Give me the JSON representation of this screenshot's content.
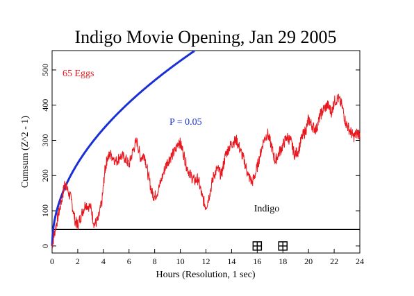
{
  "chart_data": {
    "type": "line",
    "title": "Indigo Movie Opening, Jan 29 2005",
    "xlabel": "Hours (Resolution, 1 sec)",
    "ylabel": "Cumsum (Z^2 - 1)",
    "xlim": [
      0,
      24
    ],
    "ylim": [
      -20,
      555
    ],
    "x_ticks": [
      0,
      2,
      4,
      6,
      8,
      10,
      12,
      14,
      16,
      18,
      20,
      22,
      24
    ],
    "y_ticks": [
      0,
      100,
      200,
      300,
      400,
      500
    ],
    "grid": false,
    "series": [
      {
        "name": "65 Eggs",
        "color": "#e8161d",
        "x": [
          0,
          0.2,
          0.5,
          0.8,
          1.0,
          1.2,
          1.5,
          1.8,
          2.0,
          2.3,
          2.6,
          3.0,
          3.3,
          3.6,
          3.9,
          4.1,
          4.3,
          4.6,
          5.0,
          5.3,
          5.7,
          6.0,
          6.3,
          6.6,
          6.9,
          7.2,
          7.5,
          7.8,
          8.0,
          8.3,
          8.7,
          9.0,
          9.3,
          9.6,
          9.9,
          10.2,
          10.5,
          10.8,
          11.1,
          11.4,
          11.7,
          12.0,
          12.3,
          12.6,
          12.9,
          13.2,
          13.5,
          13.8,
          14.1,
          14.4,
          14.7,
          15.0,
          15.3,
          15.6,
          15.9,
          16.2,
          16.5,
          16.8,
          17.1,
          17.4,
          17.7,
          18.0,
          18.3,
          18.6,
          18.9,
          19.2,
          19.5,
          19.8,
          20.0,
          20.3,
          20.6,
          20.9,
          21.2,
          21.5,
          21.8,
          22.0,
          22.3,
          22.6,
          22.9,
          23.2,
          23.5,
          23.8,
          24.0
        ],
        "y": [
          0,
          40,
          90,
          140,
          180,
          160,
          130,
          70,
          60,
          90,
          120,
          110,
          60,
          75,
          130,
          210,
          250,
          260,
          240,
          255,
          250,
          230,
          270,
          300,
          250,
          260,
          200,
          150,
          140,
          160,
          210,
          240,
          255,
          270,
          300,
          270,
          225,
          200,
          185,
          190,
          140,
          110,
          150,
          200,
          220,
          200,
          255,
          280,
          295,
          300,
          270,
          240,
          200,
          180,
          210,
          255,
          300,
          320,
          285,
          240,
          265,
          285,
          310,
          300,
          260,
          270,
          310,
          330,
          360,
          340,
          330,
          370,
          390,
          400,
          380,
          410,
          420,
          400,
          350,
          330,
          310,
          320,
          320
        ]
      },
      {
        "name": "P = 0.05",
        "color": "#1a2fd6",
        "formula": "1.96*sqrt(2*N), N = hours*3600"
      }
    ],
    "annotations": {
      "eggs_label": "65 Eggs",
      "p_label": "P = 0.05",
      "event_label": "Indigo",
      "event_marker_hours": [
        16,
        18
      ]
    }
  }
}
